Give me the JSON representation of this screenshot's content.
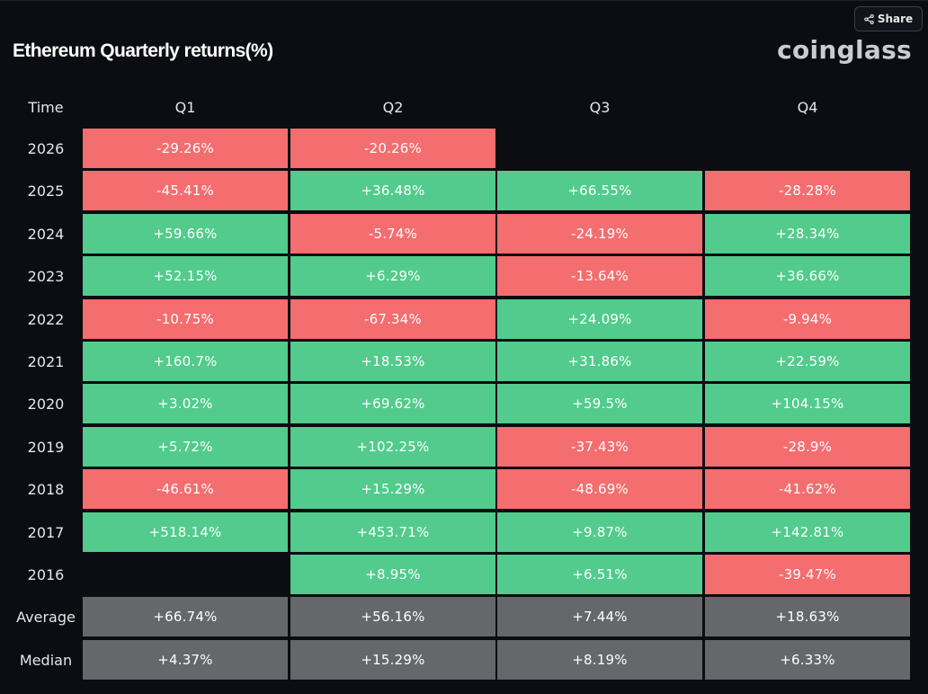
{
  "header": {
    "title": "Ethereum Quarterly returns(%)",
    "logo": "coinglass",
    "share_label": "Share"
  },
  "colors": {
    "positive": "#52cb8c",
    "negative": "#f46d6f",
    "summary": "#66676b",
    "background": "#0b0d12"
  },
  "chart_data": {
    "type": "heatmap",
    "title": "Ethereum Quarterly returns(%)",
    "corner_label": "Time",
    "columns": [
      "Q1",
      "Q2",
      "Q3",
      "Q4"
    ],
    "rows": [
      {
        "label": "2026",
        "kind": "year",
        "values": [
          "-29.26%",
          "-20.26%",
          "",
          ""
        ]
      },
      {
        "label": "2025",
        "kind": "year",
        "values": [
          "-45.41%",
          "+36.48%",
          "+66.55%",
          "-28.28%"
        ]
      },
      {
        "label": "2024",
        "kind": "year",
        "values": [
          "+59.66%",
          "-5.74%",
          "-24.19%",
          "+28.34%"
        ]
      },
      {
        "label": "2023",
        "kind": "year",
        "values": [
          "+52.15%",
          "+6.29%",
          "-13.64%",
          "+36.66%"
        ]
      },
      {
        "label": "2022",
        "kind": "year",
        "values": [
          "-10.75%",
          "-67.34%",
          "+24.09%",
          "-9.94%"
        ]
      },
      {
        "label": "2021",
        "kind": "year",
        "values": [
          "+160.7%",
          "+18.53%",
          "+31.86%",
          "+22.59%"
        ]
      },
      {
        "label": "2020",
        "kind": "year",
        "values": [
          "+3.02%",
          "+69.62%",
          "+59.5%",
          "+104.15%"
        ]
      },
      {
        "label": "2019",
        "kind": "year",
        "values": [
          "+5.72%",
          "+102.25%",
          "-37.43%",
          "-28.9%"
        ]
      },
      {
        "label": "2018",
        "kind": "year",
        "values": [
          "-46.61%",
          "+15.29%",
          "-48.69%",
          "-41.62%"
        ]
      },
      {
        "label": "2017",
        "kind": "year",
        "values": [
          "+518.14%",
          "+453.71%",
          "+9.87%",
          "+142.81%"
        ]
      },
      {
        "label": "2016",
        "kind": "year",
        "values": [
          "",
          "+8.95%",
          "+6.51%",
          "-39.47%"
        ]
      },
      {
        "label": "Average",
        "kind": "summary",
        "values": [
          "+66.74%",
          "+56.16%",
          "+7.44%",
          "+18.63%"
        ]
      },
      {
        "label": "Median",
        "kind": "summary",
        "values": [
          "+4.37%",
          "+15.29%",
          "+8.19%",
          "+6.33%"
        ]
      }
    ]
  }
}
